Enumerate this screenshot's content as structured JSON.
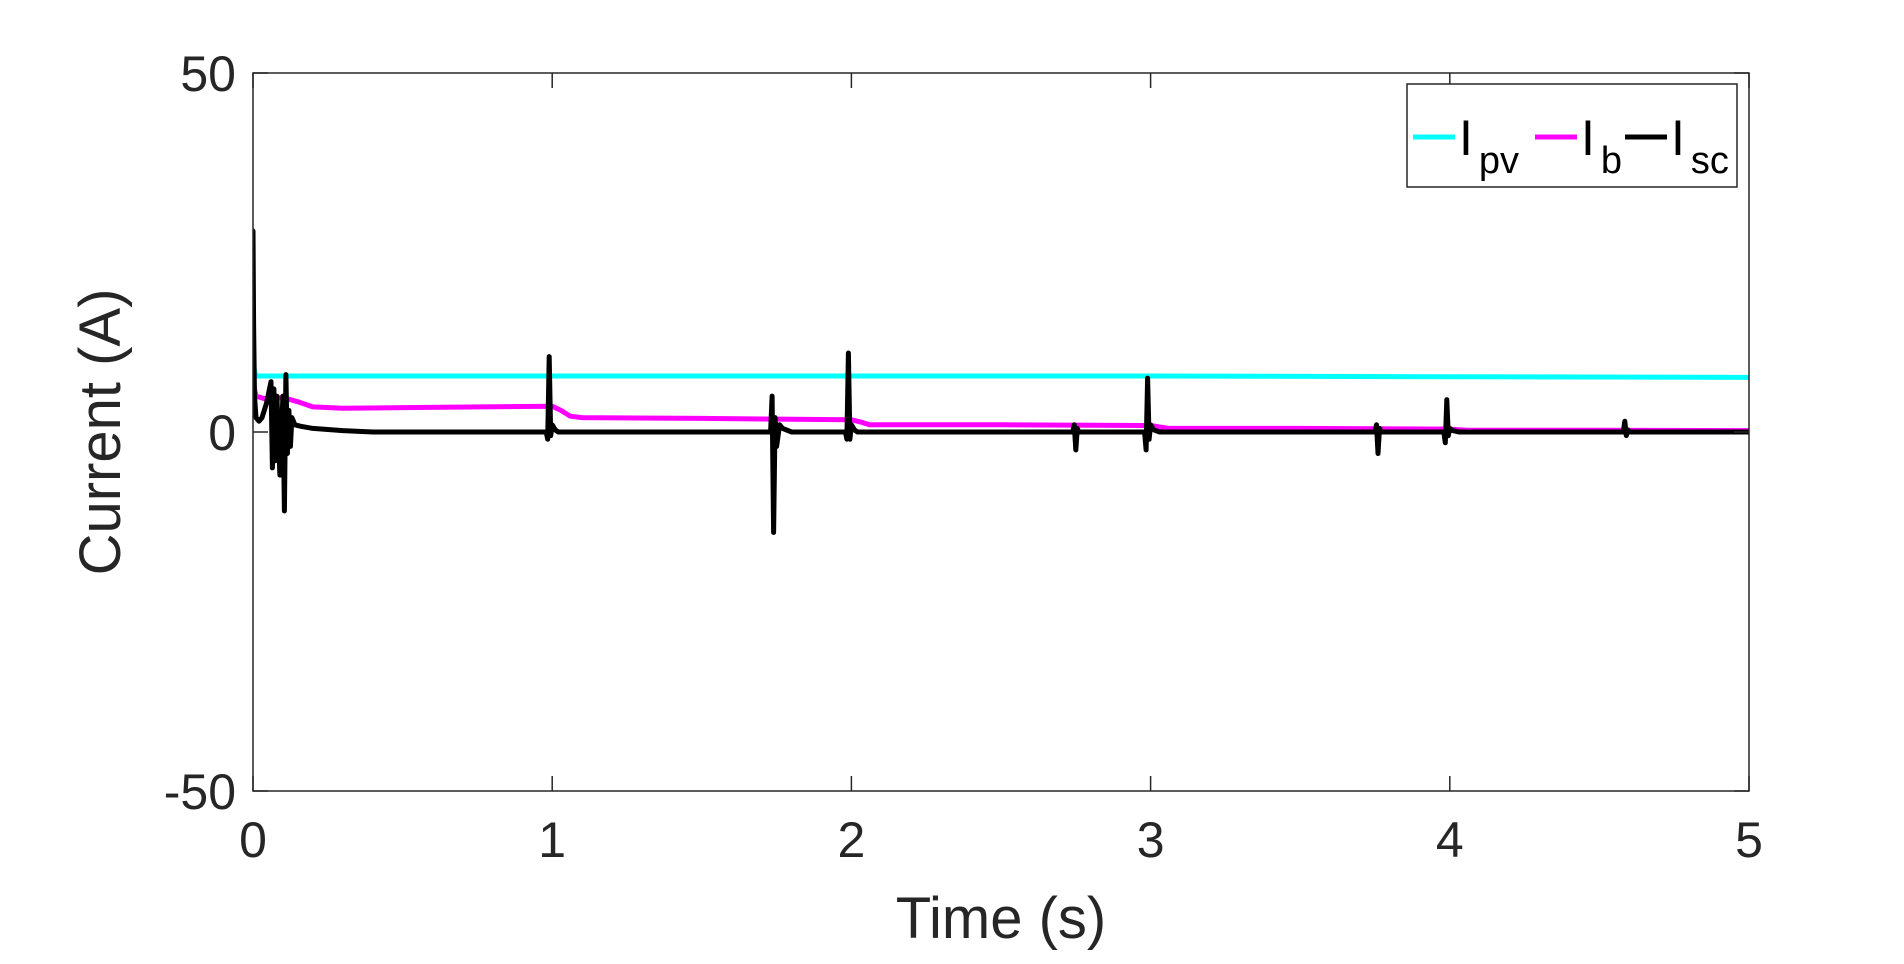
{
  "chart_data": {
    "type": "line",
    "xlabel": "Time (s)",
    "ylabel": "Current (A)",
    "xlim": [
      0,
      5
    ],
    "ylim": [
      -50,
      50
    ],
    "x_ticks": [
      "0",
      "1",
      "2",
      "3",
      "4",
      "5"
    ],
    "y_ticks": [
      "-50",
      "0",
      "50"
    ],
    "grid": false,
    "legend_position": "top-right",
    "legend_orientation": "horizontal",
    "series": [
      {
        "name": "I",
        "subscript": "pv",
        "color": "#00FFFF",
        "x": [
          0,
          0.005,
          0.01,
          0.03,
          1,
          2,
          3,
          4,
          5
        ],
        "y": [
          10,
          8.5,
          7.8,
          7.8,
          7.8,
          7.8,
          7.8,
          7.7,
          7.6
        ]
      },
      {
        "name": "I",
        "subscript": "b",
        "color": "#FF00FF",
        "x": [
          0,
          0.01,
          0.05,
          0.1,
          0.15,
          0.2,
          0.3,
          0.5,
          1.0,
          1.03,
          1.06,
          1.1,
          1.5,
          2.0,
          2.03,
          2.06,
          2.1,
          2.5,
          3.0,
          3.03,
          3.06,
          3.1,
          3.5,
          4.0,
          4.03,
          4.06,
          4.1,
          4.5,
          5.0
        ],
        "y": [
          7,
          5,
          4.5,
          4.8,
          4.2,
          3.5,
          3.3,
          3.4,
          3.6,
          3.0,
          2.2,
          2.0,
          1.9,
          1.7,
          1.4,
          1.0,
          1.0,
          1.0,
          0.9,
          0.7,
          0.5,
          0.5,
          0.5,
          0.4,
          0.3,
          0.25,
          0.25,
          0.25,
          0.2
        ]
      },
      {
        "name": "I",
        "subscript": "sc",
        "color": "#000000",
        "x": [
          0,
          0.002,
          0.005,
          0.01,
          0.02,
          0.03,
          0.045,
          0.06,
          0.065,
          0.07,
          0.075,
          0.08,
          0.09,
          0.1,
          0.105,
          0.11,
          0.115,
          0.12,
          0.125,
          0.13,
          0.14,
          0.16,
          0.2,
          0.3,
          0.4,
          0.6,
          0.98,
          0.985,
          0.99,
          0.995,
          1.0,
          1.01,
          1.02,
          1.05,
          1.1,
          1.5,
          1.73,
          1.735,
          1.74,
          1.745,
          1.75,
          1.76,
          1.77,
          1.8,
          1.9,
          1.98,
          1.985,
          1.99,
          1.995,
          2.0,
          2.01,
          2.02,
          2.05,
          2.1,
          2.5,
          2.74,
          2.745,
          2.75,
          2.755,
          2.76,
          2.8,
          2.98,
          2.985,
          2.99,
          2.995,
          3.0,
          3.01,
          3.03,
          3.1,
          3.5,
          3.75,
          3.755,
          3.76,
          3.765,
          3.77,
          3.8,
          3.98,
          3.985,
          3.99,
          3.995,
          4.0,
          4.01,
          4.03,
          4.1,
          4.58,
          4.585,
          4.59,
          4.595,
          4.6,
          4.7,
          5.0
        ],
        "y": [
          28,
          15,
          5,
          2,
          1.5,
          2,
          4,
          7,
          -5,
          6,
          -4,
          5,
          -6,
          5,
          -11,
          8,
          -3,
          3,
          -2,
          2,
          1,
          0.8,
          0.5,
          0.2,
          0,
          0,
          0,
          -1,
          10.5,
          -0.5,
          1,
          0.3,
          0,
          0,
          0,
          0,
          0,
          5,
          -14,
          2,
          -2,
          1,
          0.5,
          0,
          0,
          0,
          -1,
          11,
          -1,
          1,
          0.3,
          0,
          0,
          0,
          0,
          0,
          1,
          -2.5,
          0.5,
          0,
          0,
          0,
          -2.5,
          7.5,
          -1,
          1,
          0.3,
          0,
          0,
          0,
          0,
          1,
          -3,
          0.5,
          0,
          0,
          0,
          -1.5,
          4.5,
          -0.5,
          0.5,
          0.2,
          0,
          0,
          0,
          1.5,
          -0.5,
          0.3,
          0,
          0,
          0
        ]
      }
    ]
  }
}
